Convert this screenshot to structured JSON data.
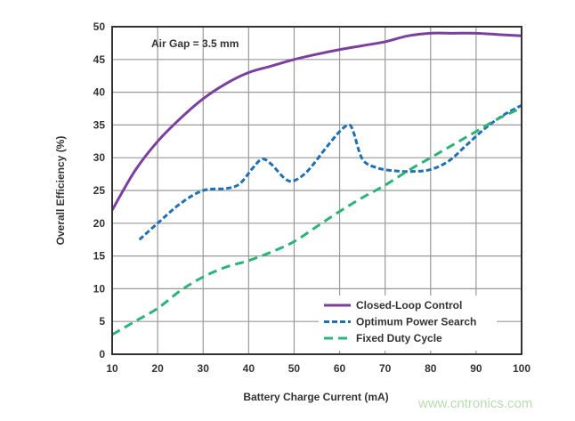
{
  "chart_data": {
    "type": "line",
    "title": "",
    "annotation": "Air Gap = 3.5 mm",
    "xlabel": "Battery Charge Current (mA)",
    "ylabel": "Overall Efficiency (%)",
    "xlim": [
      10,
      100
    ],
    "ylim": [
      0,
      50
    ],
    "xticks": [
      10,
      20,
      30,
      40,
      50,
      60,
      70,
      80,
      90,
      100
    ],
    "yticks": [
      0,
      5,
      10,
      15,
      20,
      25,
      30,
      35,
      40,
      45,
      50
    ],
    "grid": true,
    "legend_placement": "bottom-right",
    "series": [
      {
        "name": "Closed-Loop Control",
        "color": "#7b3f9e",
        "style": "solid",
        "x": [
          10,
          15,
          20,
          25,
          30,
          35,
          40,
          45,
          50,
          55,
          60,
          65,
          70,
          75,
          80,
          85,
          90,
          95,
          100
        ],
        "y": [
          22,
          28,
          32.5,
          36,
          39,
          41.3,
          43,
          44,
          45,
          45.8,
          46.5,
          47.1,
          47.7,
          48.6,
          49,
          49,
          49,
          48.8,
          48.6
        ]
      },
      {
        "name": "Optimum Power Search",
        "color": "#1f6fb5",
        "style": "dashed",
        "x": [
          16,
          20,
          25,
          30,
          35,
          38,
          41,
          43,
          45,
          48,
          50,
          53,
          57,
          60,
          62,
          63,
          65,
          68,
          72,
          76,
          80,
          84,
          88,
          92,
          96,
          100
        ],
        "y": [
          17.5,
          20,
          23,
          25,
          25.3,
          26,
          28.5,
          29.8,
          29,
          26.8,
          26.5,
          28,
          31.5,
          34,
          35,
          34,
          29.8,
          28.5,
          28,
          27.9,
          28.2,
          29.5,
          32,
          34.5,
          36.5,
          38
        ]
      },
      {
        "name": "Fixed Duty Cycle",
        "color": "#2db37a",
        "style": "long-dashed",
        "x": [
          10,
          15,
          20,
          25,
          30,
          35,
          40,
          45,
          50,
          55,
          60,
          65,
          70,
          75,
          80,
          85,
          90,
          95,
          100
        ],
        "y": [
          3,
          5,
          7,
          9.7,
          11.8,
          13.3,
          14.3,
          15.6,
          17.2,
          19.5,
          21.8,
          23.9,
          25.8,
          28,
          30,
          32,
          34,
          36,
          37.6
        ]
      }
    ]
  },
  "watermark": "www.cntronics.com"
}
